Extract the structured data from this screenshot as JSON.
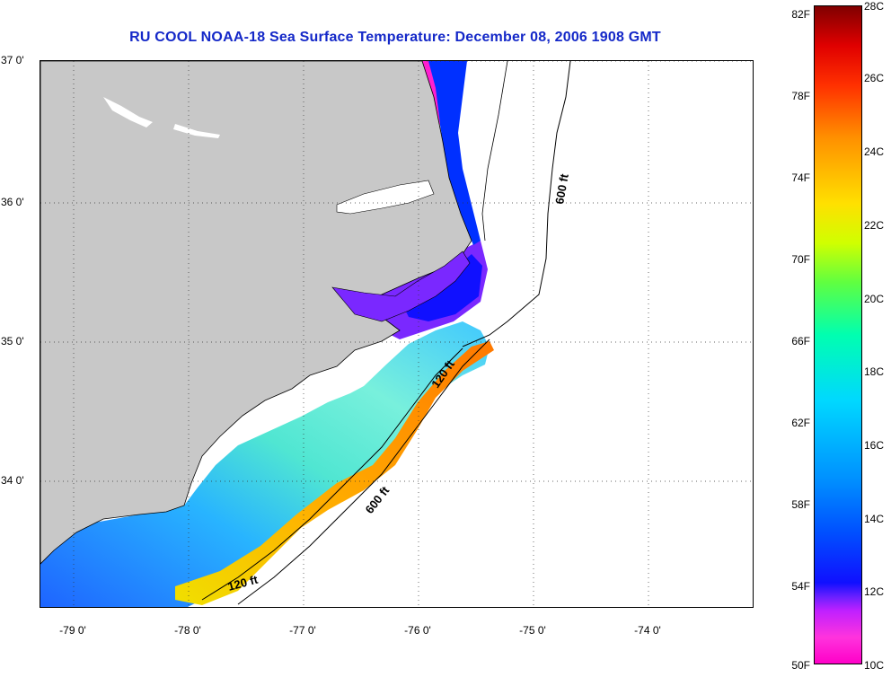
{
  "title": "RU COOL  NOAA-18  Sea Surface Temperature:  December 08, 2006 1908 GMT",
  "lat_labels": [
    "37 0'",
    "36 0'",
    "35 0'",
    "34 0'"
  ],
  "lon_labels": [
    "-79 0'",
    "-78 0'",
    "-77 0'",
    "-76 0'",
    "-75 0'",
    "-74 0'"
  ],
  "isobath_labels": [
    "600 ft",
    "120 ft",
    "600 ft",
    "120 ft"
  ],
  "colorbar": {
    "fahrenheit": [
      "82F",
      "78F",
      "74F",
      "70F",
      "66F",
      "62F",
      "58F",
      "54F",
      "50F"
    ],
    "celsius": [
      "28C",
      "26C",
      "24C",
      "22C",
      "20C",
      "18C",
      "16C",
      "14C",
      "12C",
      "10C"
    ]
  },
  "colors": {
    "land": "#c8c8c8",
    "title": "#1428c8",
    "cold": "#ff00c8",
    "warm": "#800000"
  }
}
